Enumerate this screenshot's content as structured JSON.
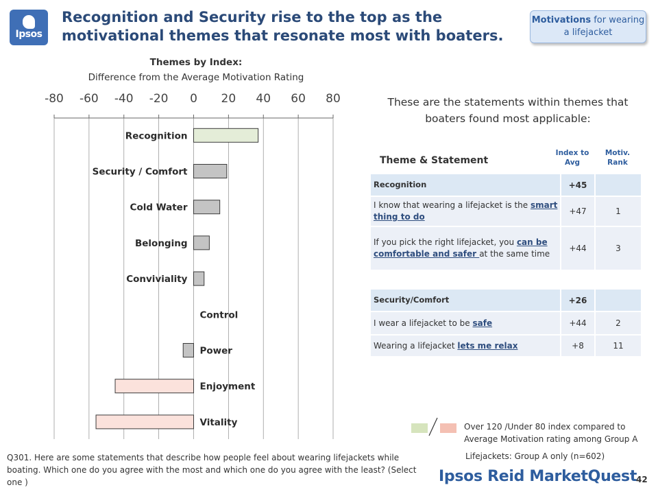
{
  "logo": {
    "text": "Ipsos"
  },
  "title": "Recognition and Security rise to the top as the motivational themes that resonate most with boaters.",
  "badge": {
    "strong": "Motivations",
    "rest": " for wearing a lifejacket"
  },
  "chart_title": "Themes by Index:",
  "chart_subtitle": "Difference from the Average Motivation Rating",
  "chart_data": {
    "type": "bar",
    "orientation": "horizontal",
    "title": "Themes by Index:",
    "subtitle": "Difference from the Average Motivation Rating",
    "xlim": [
      -80,
      80
    ],
    "xticks": [
      -80,
      -60,
      -40,
      -20,
      0,
      20,
      40,
      60,
      80
    ],
    "xtick_position": "top",
    "categories": [
      "Recognition",
      "Security / Comfort",
      "Cold Water",
      "Belonging",
      "Conviviality",
      "Control",
      "Power",
      "Enjoyment",
      "Vitality"
    ],
    "values": [
      37,
      19,
      15,
      9,
      6,
      0,
      -6,
      -45,
      -56
    ],
    "bar_colors": [
      "#e4edd8",
      "#c4c4c4",
      "#c4c4c4",
      "#c4c4c4",
      "#c4c4c4",
      "#c4c4c4",
      "#c4c4c4",
      "#fbe2dc",
      "#fbe2dc"
    ],
    "grid": "vertical",
    "legend": "none"
  },
  "intro": "These are the statements within themes that boaters found most applicable:",
  "table": {
    "header": {
      "theme": "Theme & Statement",
      "index": "Index to Avg",
      "rank": "Motiv. Rank"
    },
    "groups": [
      {
        "name": "Recognition",
        "index": "+45",
        "rank": "",
        "rows": [
          {
            "pre": "I know that wearing a lifejacket is the ",
            "u": "smart thing to do",
            "post": "",
            "index": "+47",
            "rank": "1"
          },
          {
            "pre": "If you pick the right lifejacket, you ",
            "u": "can be comfortable and safer ",
            "post": "at the same time",
            "index": "+44",
            "rank": "3"
          }
        ]
      },
      {
        "name": "Security/Comfort",
        "index": "+26",
        "rank": "",
        "rows": [
          {
            "pre": "I wear a lifejacket to be ",
            "u": "safe",
            "post": "",
            "index": "+44",
            "rank": "2"
          },
          {
            "pre": "Wearing a lifejacket ",
            "u": "lets me relax",
            "post": "",
            "index": "+8",
            "rank": "11"
          }
        ]
      }
    ]
  },
  "legend": {
    "text": "Over 120 /Under 80 index compared to Average Motivation rating among Group A",
    "over_color": "#d6e4bd",
    "under_color": "#f4c0b3"
  },
  "footnote": "Q301. Here are some statements that describe how people feel about wearing lifejackets while boating. Which one do you agree with the most and which one do you agree with the least? (Select one )",
  "sample": "Lifejackets: Group A only (n=602)",
  "brand": "Ipsos Reid MarketQuest",
  "page_number": "42"
}
